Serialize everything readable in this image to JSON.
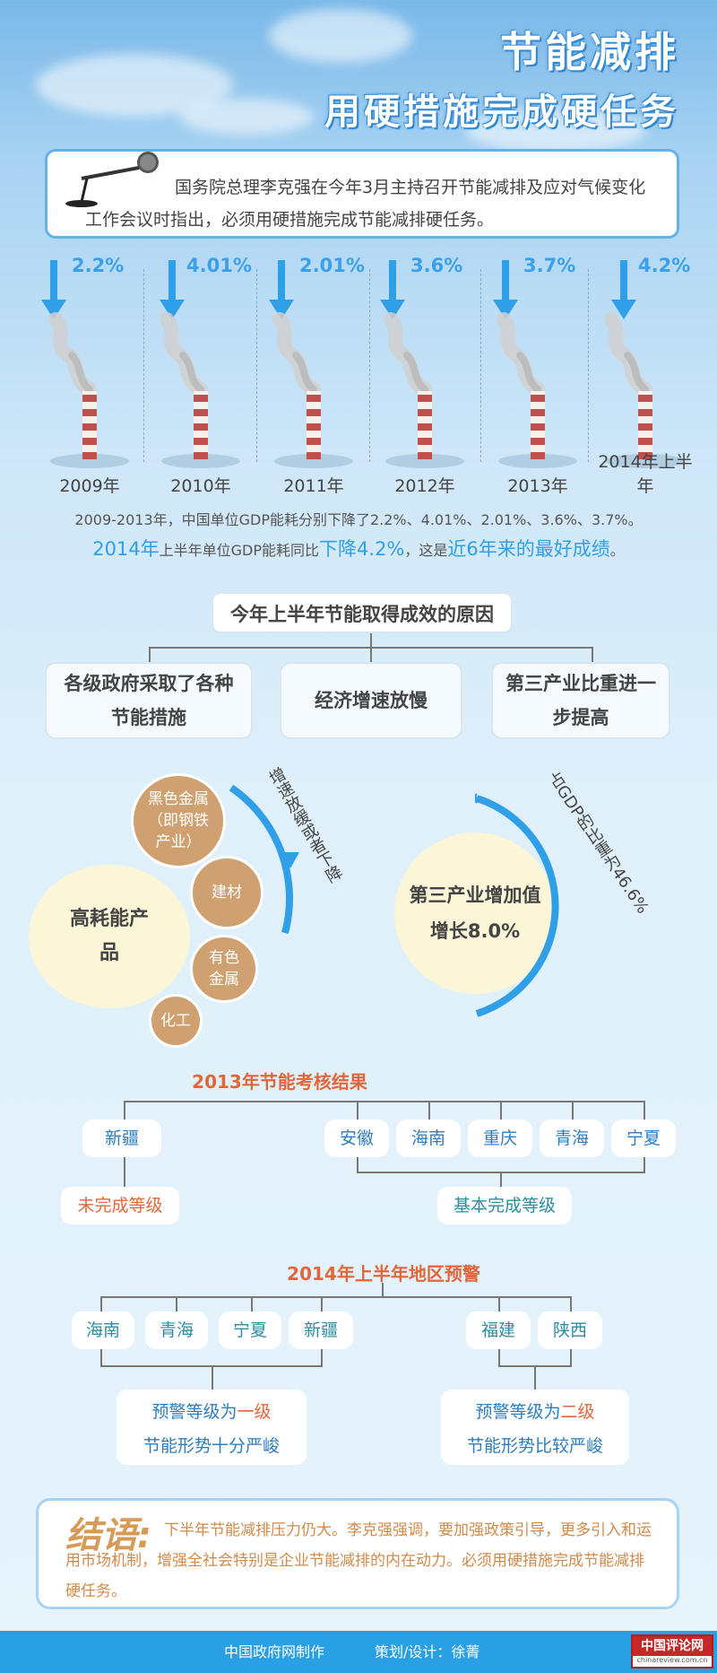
{
  "title": {
    "line1": "节能减排",
    "line2": "用硬措施完成硬任务"
  },
  "quote": "国务院总理李克强在今年3月主持召开节能减排及应对气候变化工作会议时指出，必须用硬措施完成节能减排硬任务。",
  "years": [
    {
      "pct": "2.2%",
      "label": "2009年"
    },
    {
      "pct": "4.01%",
      "label": "2010年"
    },
    {
      "pct": "2.01%",
      "label": "2011年"
    },
    {
      "pct": "3.6%",
      "label": "2012年"
    },
    {
      "pct": "3.7%",
      "label": "2013年"
    },
    {
      "pct": "4.2%",
      "label": "2014年上半年"
    }
  ],
  "summary": {
    "line1": "2009-2013年，中国单位GDP能耗分别下降了2.2%、4.01%、2.01%、3.6%、3.7%。",
    "p1": "2014年",
    "p2": "上半年单位GDP能耗同比",
    "p3": "下降4.2%",
    "p4": "，这是",
    "p5": "近6年来的最好成绩",
    "p6": "。"
  },
  "reasons": {
    "title": "今年上半年节能取得成效的原因",
    "items": [
      "各级政府采取了各种节能措施",
      "经济增速放慢",
      "第三产业比重进一步提高"
    ]
  },
  "left_circles": {
    "main": "高耗能产品",
    "items": [
      "黑色金属（即钢铁产业）",
      "建材",
      "有色金属",
      "化工"
    ],
    "arc_label": "增速放缓或者下降"
  },
  "right_circle": {
    "main": "第三产业增加值增长8.0%",
    "arc_label": "占GDP的比重为46.6%"
  },
  "assessment": {
    "title": "2013年节能考核结果",
    "failed": [
      "新疆"
    ],
    "failed_label": "未完成等级",
    "passed": [
      "安徽",
      "海南",
      "重庆",
      "青海",
      "宁夏"
    ],
    "passed_label": "基本完成等级"
  },
  "warning": {
    "title": "2014年上半年地区预警",
    "level1_regions": [
      "海南",
      "青海",
      "宁夏",
      "新疆"
    ],
    "level1_a": "预警等级为",
    "level1_b": "一级",
    "level1_desc": "节能形势十分严峻",
    "level2_regions": [
      "福建",
      "陕西"
    ],
    "level2_a": "预警等级为",
    "level2_b": "二级",
    "level2_desc": "节能形势比较严峻"
  },
  "conclusion": {
    "label": "结语:",
    "text": "下半年节能减排压力仍大。李克强强调，要加强政策引导，更多引入和运用市场机制，增强全社会特别是企业节能减排的内在动力。必须用硬措施完成节能减排硬任务。"
  },
  "footer": {
    "maker": "中国政府网制作",
    "design": "策划/设计：徐菁",
    "logo": "中国评论网",
    "logo_url": "chinareview.com.cn"
  },
  "colors": {
    "accent_blue": "#2fa0e8",
    "accent_orange": "#e0673b",
    "tan": "#cfa170",
    "cream": "#fbf6d7"
  }
}
